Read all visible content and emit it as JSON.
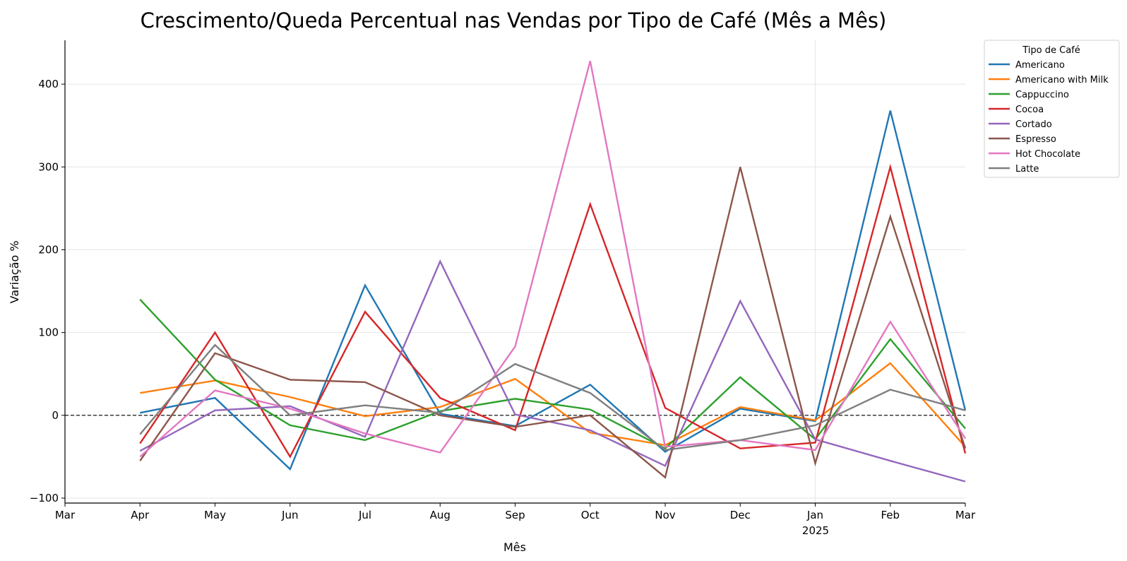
{
  "chart_data": {
    "type": "line",
    "title": "Crescimento/Queda Percentual nas Vendas por Tipo de Café (Mês a Mês)",
    "xlabel": "Mês",
    "ylabel": "Variação %",
    "x_ticks": [
      "Mar",
      "Apr",
      "May",
      "Jun",
      "Jul",
      "Aug",
      "Sep",
      "Oct",
      "Nov",
      "Dec",
      "Jan",
      "Feb",
      "Mar"
    ],
    "x_year_label": "2025",
    "x": [
      "Apr",
      "May",
      "Jun",
      "Jul",
      "Aug",
      "Sep",
      "Oct",
      "Nov",
      "Dec",
      "Jan",
      "Feb",
      "Mar"
    ],
    "y_ticks": [
      -100,
      0,
      100,
      200,
      300,
      400
    ],
    "ylim": [
      -106,
      453
    ],
    "grid": "horizontal gridlines, vertical gridline at Jan",
    "zero_line": "dashed",
    "legend": {
      "title": "Tipo de Café",
      "position": "outside-right-top"
    },
    "series": [
      {
        "name": "Americano",
        "color": "#1f77b4",
        "values": [
          3,
          21,
          -65,
          157,
          2,
          -13,
          37,
          -44,
          8,
          -7,
          368,
          6
        ]
      },
      {
        "name": "Americano with Milk",
        "color": "#ff7f0e",
        "values": [
          27,
          42,
          22,
          -1,
          10,
          44,
          -21,
          -36,
          10,
          -6,
          63,
          -38
        ]
      },
      {
        "name": "Cappuccino",
        "color": "#2ca02c",
        "values": [
          140,
          43,
          -12,
          -30,
          5,
          20,
          7,
          -40,
          46,
          -29,
          92,
          -16
        ]
      },
      {
        "name": "Cocoa",
        "color": "#d62728",
        "values": [
          -34,
          100,
          -50,
          125,
          21,
          -18,
          255,
          9,
          -40,
          -33,
          300,
          -46
        ]
      },
      {
        "name": "Cortado",
        "color": "#9467bd",
        "values": [
          -43,
          6,
          11,
          -26,
          186,
          1,
          -18,
          -61,
          138,
          -29,
          -55,
          -80
        ]
      },
      {
        "name": "Espresso",
        "color": "#8c564b",
        "values": [
          -55,
          75,
          43,
          40,
          0,
          -14,
          0,
          -75,
          300,
          -58,
          240,
          -40
        ]
      },
      {
        "name": "Hot Chocolate",
        "color": "#e377c2",
        "values": [
          -50,
          30,
          8,
          -22,
          -45,
          83,
          428,
          -38,
          -30,
          -42,
          113,
          -28
        ]
      },
      {
        "name": "Latte",
        "color": "#7f7f7f",
        "values": [
          -23,
          85,
          0,
          12,
          3,
          62,
          27,
          -42,
          -30,
          -12,
          31,
          6
        ]
      }
    ]
  }
}
